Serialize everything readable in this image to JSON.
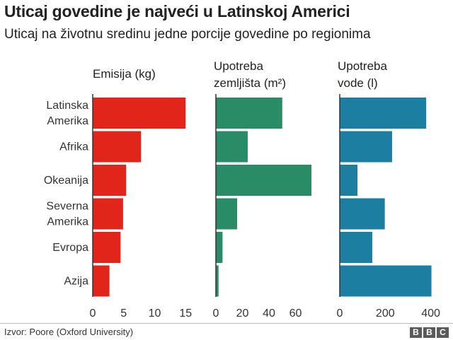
{
  "title": "Uticaj govedine je najveći u Latinskoj Americi",
  "subtitle": "Uticaj na životnu sredinu jedne porcije govedine po regionima",
  "source": "Izvor: Poore (Oxford University)",
  "logo_letters": [
    "B",
    "B",
    "C"
  ],
  "chart_data": {
    "type": "bar",
    "orientation": "horizontal",
    "categories": [
      "Latinska\nAmerika",
      "Afrika",
      "Okeanija",
      "Severna\nAmerika",
      "Evropa",
      "Azija"
    ],
    "panels": [
      {
        "title": "Emisija (kg)",
        "color": "#e1251b",
        "xlim": [
          0,
          16
        ],
        "ticks": [
          0,
          5,
          10,
          15
        ],
        "values": [
          15,
          7.8,
          5.4,
          4.9,
          4.5,
          2.7
        ]
      },
      {
        "title": "Upotreba\nzemljišta (m²)",
        "color": "#2a8c67",
        "xlim": [
          0,
          72
        ],
        "ticks": [
          0,
          20,
          40,
          60
        ],
        "values": [
          50,
          24,
          72,
          16,
          5,
          2
        ]
      },
      {
        "title": "Upotreba\nvode (l)",
        "color": "#1c7ea0",
        "xlim": [
          0,
          420
        ],
        "ticks": [
          0,
          200,
          400
        ],
        "values": [
          380,
          230,
          78,
          198,
          143,
          403
        ]
      }
    ]
  }
}
